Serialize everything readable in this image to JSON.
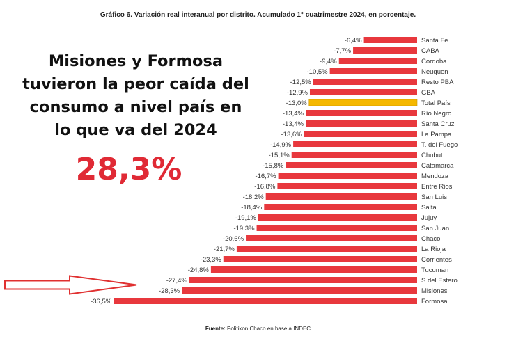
{
  "chart_data": {
    "type": "bar",
    "orientation": "horizontal",
    "title": "Gráfico 6. Variación real interanual por distrito. Acumulado 1° cuatrimestre 2024, en porcentaje.",
    "categories": [
      "Santa Fe",
      "CABA",
      "Cordoba",
      "Neuquen",
      "Resto PBA",
      "GBA",
      "Total País",
      "Río Negro",
      "Santa Cruz",
      "La Pampa",
      "T. del Fuego",
      "Chubut",
      "Catamarca",
      "Mendoza",
      "Entre Rios",
      "San Luis",
      "Salta",
      "Jujuy",
      "San Juan",
      "Chaco",
      "La Rioja",
      "Corrientes",
      "Tucuman",
      "S del Estero",
      "Misiones",
      "Formosa"
    ],
    "values": [
      -6.4,
      -7.7,
      -9.4,
      -10.5,
      -12.5,
      -12.9,
      -13.0,
      -13.4,
      -13.4,
      -13.6,
      -14.9,
      -15.1,
      -15.8,
      -16.7,
      -16.8,
      -18.2,
      -18.4,
      -19.1,
      -19.3,
      -20.6,
      -21.7,
      -23.3,
      -24.8,
      -27.4,
      -28.3,
      -36.5
    ],
    "value_labels": [
      "-6,4%",
      "-7,7%",
      "-9,4%",
      "-10,5%",
      "-12,5%",
      "-12,9%",
      "-13,0%",
      "-13,4%",
      "-13,4%",
      "-13,6%",
      "-14,9%",
      "-15,1%",
      "-15,8%",
      "-16,7%",
      "-16,8%",
      "-18,2%",
      "-18,4%",
      "-19,1%",
      "-19,3%",
      "-20,6%",
      "-21,7%",
      "-23,3%",
      "-24,8%",
      "-27,4%",
      "-28,3%",
      "-36,5%"
    ],
    "highlight_category": "Total País",
    "colors": {
      "bar": "#e8383d",
      "highlight": "#f5b800",
      "arrow": "#e03030"
    },
    "xlabel": "",
    "ylabel": "",
    "grid": false
  },
  "overlay": {
    "headline": "Misiones y Formosa tuvieron la peor caída del consumo a nivel país en lo que va del 2024",
    "highlight_value": "28,3%",
    "arrow_target": "Misiones"
  },
  "source": {
    "label": "Fuente:",
    "text": " Politikon Chaco en base a INDEC"
  }
}
